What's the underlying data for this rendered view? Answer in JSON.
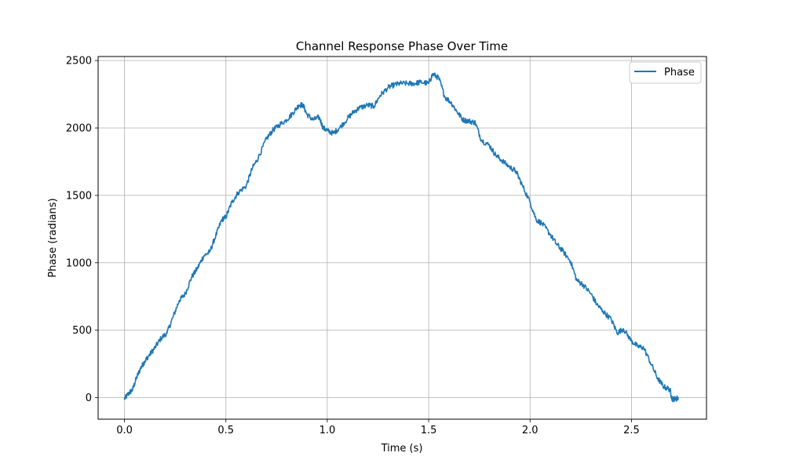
{
  "chart_data": {
    "type": "line",
    "title": "Channel Response Phase Over Time",
    "xlabel": "Time (s)",
    "ylabel": "Phase (radians)",
    "xlim": [
      -0.13,
      2.87
    ],
    "ylim": [
      -160,
      2530
    ],
    "xticks": [
      0.0,
      0.5,
      1.0,
      1.5,
      2.0,
      2.5
    ],
    "xtick_labels": [
      "0.0",
      "0.5",
      "1.0",
      "1.5",
      "2.0",
      "2.5"
    ],
    "yticks": [
      0,
      500,
      1000,
      1500,
      2000,
      2500
    ],
    "ytick_labels": [
      "0",
      "500",
      "1000",
      "1500",
      "2000",
      "2500"
    ],
    "grid": true,
    "legend": {
      "position": "top-right",
      "entries": [
        "Phase"
      ]
    },
    "series": [
      {
        "name": "Phase",
        "color": "#1f77b4",
        "x": [
          0.0,
          0.02,
          0.04,
          0.06,
          0.08,
          0.1,
          0.12,
          0.15,
          0.18,
          0.21,
          0.24,
          0.27,
          0.3,
          0.33,
          0.36,
          0.39,
          0.42,
          0.45,
          0.48,
          0.5,
          0.53,
          0.56,
          0.6,
          0.63,
          0.66,
          0.7,
          0.73,
          0.76,
          0.8,
          0.83,
          0.86,
          0.88,
          0.9,
          0.93,
          0.96,
          0.98,
          1.0,
          1.03,
          1.06,
          1.1,
          1.13,
          1.16,
          1.2,
          1.23,
          1.26,
          1.3,
          1.33,
          1.36,
          1.4,
          1.43,
          1.46,
          1.5,
          1.52,
          1.55,
          1.58,
          1.61,
          1.64,
          1.67,
          1.7,
          1.73,
          1.76,
          1.8,
          1.83,
          1.86,
          1.9,
          1.93,
          1.96,
          2.0,
          2.03,
          2.06,
          2.1,
          2.13,
          2.16,
          2.2,
          2.23,
          2.26,
          2.3,
          2.33,
          2.36,
          2.4,
          2.43,
          2.46,
          2.5,
          2.53,
          2.56,
          2.6,
          2.63,
          2.66,
          2.69,
          2.7,
          2.72,
          2.73
        ],
        "y": [
          -10,
          30,
          60,
          150,
          220,
          270,
          310,
          370,
          440,
          480,
          600,
          720,
          770,
          890,
          960,
          1050,
          1080,
          1200,
          1320,
          1340,
          1450,
          1520,
          1570,
          1700,
          1780,
          1920,
          1980,
          2020,
          2060,
          2110,
          2170,
          2170,
          2100,
          2060,
          2080,
          2000,
          1980,
          1960,
          2000,
          2070,
          2120,
          2150,
          2170,
          2160,
          2240,
          2300,
          2320,
          2330,
          2330,
          2330,
          2340,
          2330,
          2400,
          2370,
          2230,
          2190,
          2120,
          2060,
          2050,
          2040,
          1910,
          1870,
          1800,
          1760,
          1710,
          1680,
          1580,
          1450,
          1320,
          1290,
          1210,
          1140,
          1090,
          1010,
          870,
          840,
          770,
          690,
          640,
          580,
          480,
          510,
          420,
          380,
          370,
          240,
          140,
          80,
          60,
          -10,
          -10,
          0
        ]
      }
    ]
  }
}
